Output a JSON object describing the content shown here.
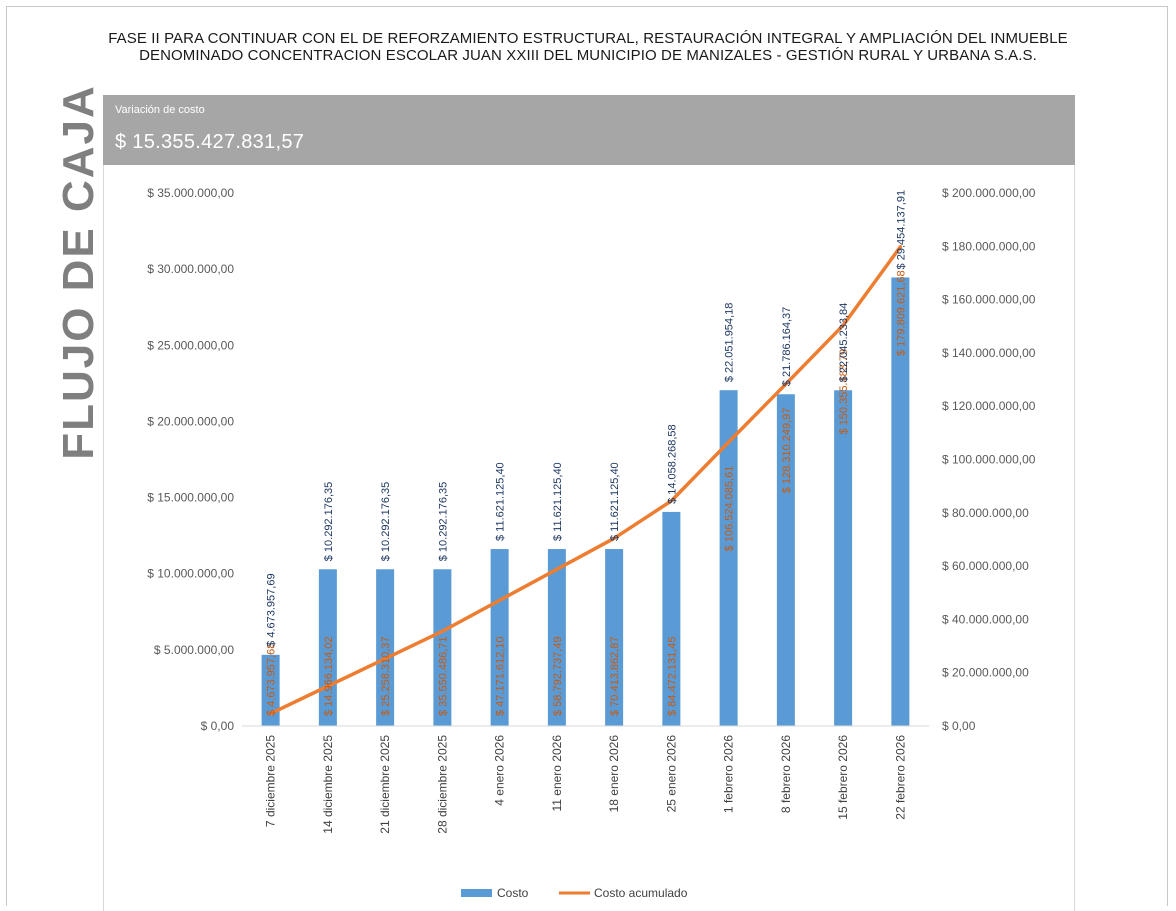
{
  "title": "FASE II PARA CONTINUAR CON EL DE REFORZAMIENTO ESTRUCTURAL, RESTAURACIÓN INTEGRAL Y AMPLIACIÓN DEL INMUEBLE DENOMINADO CONCENTRACION ESCOLAR JUAN XXIII DEL MUNICIPIO DE MANIZALES - GESTIÓN RURAL Y URBANA S.A.S.",
  "side_title": "FLUJO DE CAJA",
  "variation": {
    "label": "Variación de costo",
    "value": "$ 15.355.427.831,57"
  },
  "colors": {
    "bar": "#5b9bd5",
    "line": "#ed7d31",
    "banner": "#a6a6a6",
    "side_title": "#7f7f7f"
  },
  "chart_data": {
    "type": "bar",
    "categories": [
      "7 diciembre 2025",
      "14 diciembre 2025",
      "21 diciembre 2025",
      "28 diciembre 2025",
      "4 enero 2026",
      "11 enero 2026",
      "18 enero 2026",
      "25 enero 2026",
      "1 febrero 2026",
      "8 febrero 2026",
      "15 febrero 2026",
      "22 febrero 2026"
    ],
    "series": [
      {
        "name": "Costo",
        "type": "bar",
        "axis": "left",
        "values": [
          4673957.69,
          10292176.35,
          10292176.35,
          10292176.35,
          11621125.4,
          11621125.4,
          11621125.4,
          14058268.58,
          22051954.18,
          21786164.37,
          22045233.84,
          29454137.91
        ],
        "labels": [
          "$ 4.673.957,69",
          "$ 10.292.176,35",
          "$ 10.292.176,35",
          "$ 10.292.176,35",
          "$ 11.621.125,40",
          "$ 11.621.125,40",
          "$ 11.621.125,40",
          "$ 14.058.268,58",
          "$ 22.051.954,18",
          "$ 21.786.164,37",
          "$ 22.045.233,84",
          "$ 29.454.137,91"
        ]
      },
      {
        "name": "Costo acumulado",
        "type": "line",
        "axis": "right",
        "values": [
          4673957.68,
          14966134.02,
          25258310.37,
          35550486.71,
          47171612.1,
          58792737.49,
          70413862.87,
          84472131.45,
          106524085.61,
          128310249.97,
          150355483.79,
          179809621.68
        ],
        "labels": [
          "$ 4.673.957,68",
          "$ 14.966.134,02",
          "$ 25.258.310,37",
          "$ 35.550.486,71",
          "$ 47.171.612,10",
          "$ 58.792.737,49",
          "$ 70.413.862,87",
          "$ 84.472.131,45",
          "$ 106.524.085,61",
          "$ 128.310.249,97",
          "$ 150.355.483,79",
          "$ 179.809.621,68"
        ]
      }
    ],
    "y_left": {
      "ylim": [
        0,
        35000000
      ],
      "ticks": [
        "$ 0,00",
        "$ 5.000.000,00",
        "$ 10.000.000,00",
        "$ 15.000.000,00",
        "$ 20.000.000,00",
        "$ 25.000.000,00",
        "$ 30.000.000,00",
        "$ 35.000.000,00"
      ]
    },
    "y_right": {
      "ylim": [
        0,
        200000000
      ],
      "ticks": [
        "$ 0,00",
        "$ 20.000.000,00",
        "$ 40.000.000,00",
        "$ 60.000.000,00",
        "$ 80.000.000,00",
        "$ 100.000.000,00",
        "$ 120.000.000,00",
        "$ 140.000.000,00",
        "$ 160.000.000,00",
        "$ 180.000.000,00",
        "$ 200.000.000,00"
      ]
    },
    "legend": [
      "Costo",
      "Costo acumulado"
    ],
    "legend_position": "bottom",
    "grid": false
  }
}
